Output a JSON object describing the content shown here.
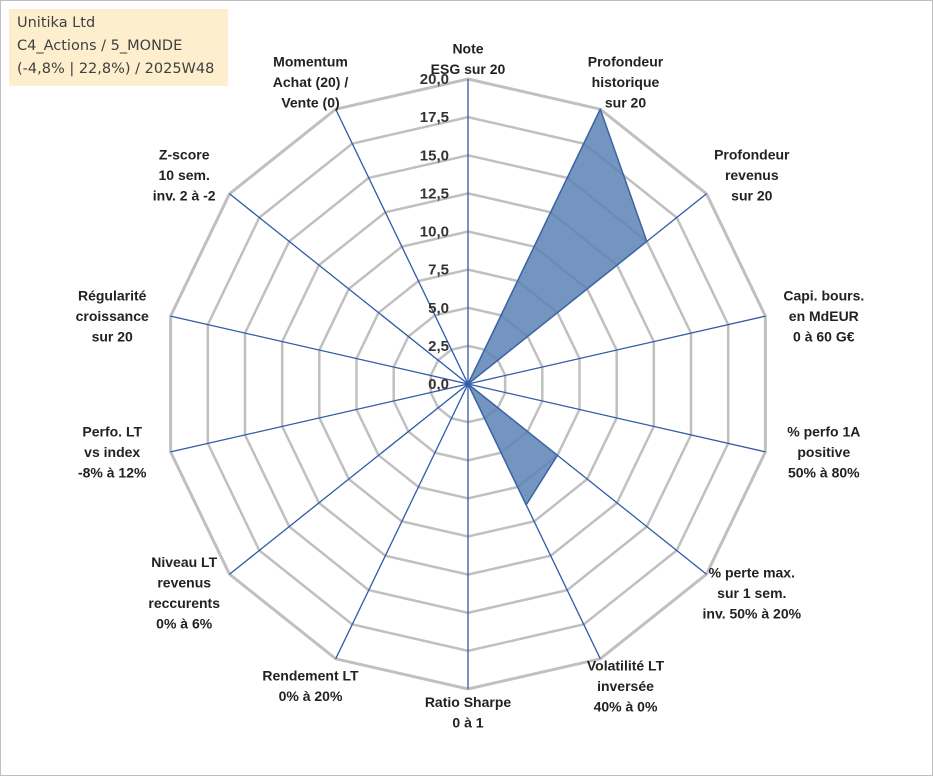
{
  "info_box": {
    "line1": "Unitika Ltd",
    "line2": "C4_Actions / 5_MONDE",
    "line3": "(-4,8% | 22,8%) / 2025W48"
  },
  "colors": {
    "fill": "#5b82b5",
    "stroke": "#3e64a3",
    "axis": "#2f5aa8",
    "grid": "#c0c0c0",
    "infobox": "#fdeecd"
  },
  "chart_data": {
    "type": "radar",
    "rmin": 0,
    "rmax": 20,
    "ticks": [
      "0,0",
      "2,5",
      "5,0",
      "7,5",
      "10,0",
      "12,5",
      "15,0",
      "17,5",
      "20,0"
    ],
    "axes": [
      {
        "label": [
          "Note",
          "ESG sur 20"
        ],
        "value": 0
      },
      {
        "label": [
          "Profondeur",
          "historique",
          "sur 20"
        ],
        "value": 20
      },
      {
        "label": [
          "Profondeur",
          "revenus",
          "sur 20"
        ],
        "value": 15
      },
      {
        "label": [
          "Capi. bours.",
          "en MdEUR",
          "0 à 60 G€"
        ],
        "value": 0
      },
      {
        "label": [
          "% perfo 1A",
          "positive",
          "50% à 80%"
        ],
        "value": 0
      },
      {
        "label": [
          "% perte max.",
          "sur 1 sem.",
          "inv. 50% à 20%"
        ],
        "value": 7.5
      },
      {
        "label": [
          "Volatilité LT",
          "inversée",
          "40% à 0%"
        ],
        "value": 8.8
      },
      {
        "label": [
          "Ratio Sharpe",
          "0 à 1"
        ],
        "value": 0
      },
      {
        "label": [
          "Rendement LT",
          "0% à 20%"
        ],
        "value": 0
      },
      {
        "label": [
          "Niveau LT",
          "revenus",
          "reccurents",
          "0% à 6%"
        ],
        "value": 0
      },
      {
        "label": [
          "Perfo. LT",
          "vs index",
          "-8% à 12%"
        ],
        "value": 0
      },
      {
        "label": [
          "Régularité",
          "croissance",
          "sur 20"
        ],
        "value": 0
      },
      {
        "label": [
          "Z-score",
          "10 sem.",
          "inv. 2 à -2"
        ],
        "value": 0
      },
      {
        "label": [
          "Momentum",
          "Achat (20) /",
          "Vente (0)"
        ],
        "value": 0
      }
    ]
  }
}
